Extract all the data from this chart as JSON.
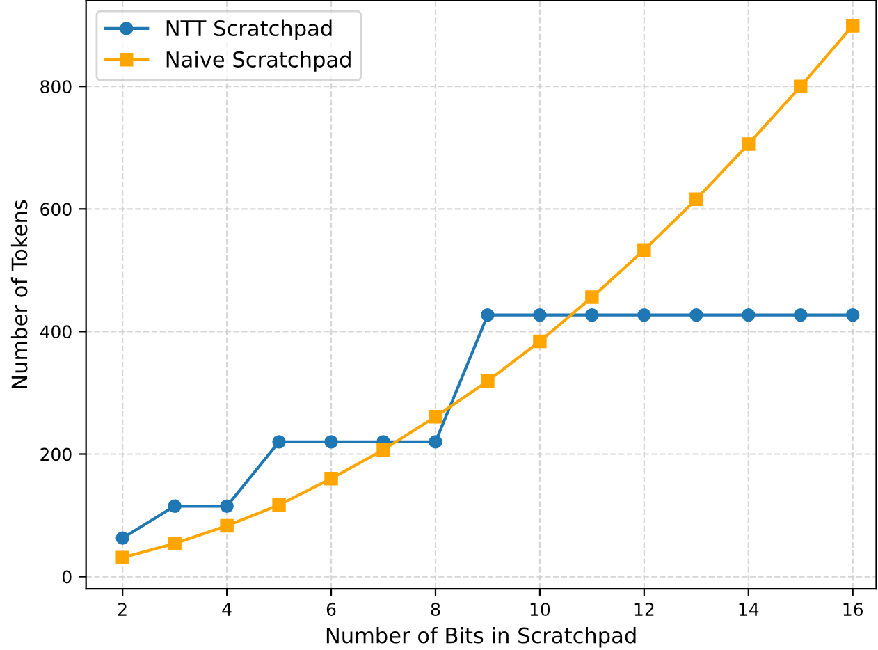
{
  "chart_data": {
    "type": "line",
    "xlabel": "Number of Bits in Scratchpad",
    "ylabel": "Number of Tokens",
    "x": [
      2,
      3,
      4,
      5,
      6,
      7,
      8,
      9,
      10,
      11,
      12,
      13,
      14,
      15,
      16
    ],
    "series": [
      {
        "name": "NTT Scratchpad",
        "color": "#1f77b4",
        "marker": "circle",
        "values": [
          63,
          115,
          115,
          220,
          220,
          220,
          220,
          427,
          427,
          427,
          427,
          427,
          427,
          427,
          427
        ]
      },
      {
        "name": "Naive Scratchpad",
        "color": "#ffa500",
        "marker": "square",
        "values": [
          31,
          54,
          83,
          117,
          160,
          207,
          261,
          319,
          384,
          456,
          533,
          616,
          706,
          800,
          899
        ]
      }
    ],
    "xlim": [
      1.3,
      16.45
    ],
    "ylim": [
      -20,
      940
    ],
    "xticks": [
      2,
      4,
      6,
      8,
      10,
      12,
      14,
      16
    ],
    "yticks": [
      0,
      200,
      400,
      600,
      800
    ],
    "grid": true,
    "legend": "top left",
    "line_style": "solid"
  }
}
